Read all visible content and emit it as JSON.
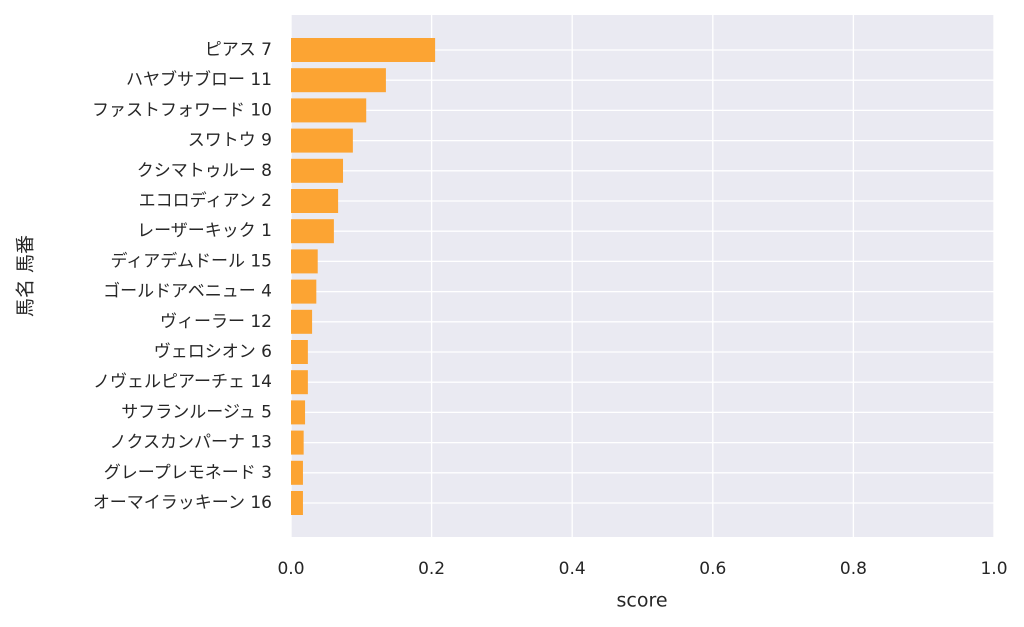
{
  "chart_data": {
    "type": "barh",
    "categories": [
      "ピアス 7",
      "ハヤブサブロー 11",
      "ファストフォワード 10",
      "スワトウ 9",
      "クシマトゥルー 8",
      "エコロディアン 2",
      "レーザーキック 1",
      "ディアデムドール 15",
      "ゴールドアベニュー 4",
      "ヴィーラー 12",
      "ヴェロシオン 6",
      "ノヴェルピアーチェ 14",
      "サフランルージュ 5",
      "ノクスカンパーナ 13",
      "グレープレモネード 3",
      "オーマイラッキーン 16"
    ],
    "values": [
      0.205,
      0.135,
      0.107,
      0.088,
      0.074,
      0.067,
      0.061,
      0.038,
      0.036,
      0.03,
      0.024,
      0.024,
      0.02,
      0.018,
      0.017,
      0.017
    ],
    "color": "#fca433",
    "xlabel": "score",
    "ylabel": "馬名 馬番",
    "xlim": [
      0,
      1
    ],
    "xticks": [
      {
        "value": 0,
        "label": "0.0"
      },
      0.2,
      0.4,
      0.6,
      0.8,
      {
        "value": 1,
        "label": "1.0"
      }
    ],
    "grid": true
  }
}
